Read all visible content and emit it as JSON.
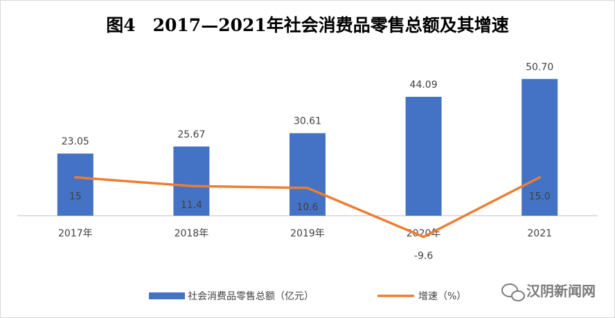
{
  "chart_data": {
    "type": "bar",
    "title": "图4　2017—2021年社会消费品零售总额及其增速",
    "categories": [
      "2017年",
      "2018年",
      "2019年",
      "2020年",
      "2021"
    ],
    "series": [
      {
        "name": "社会消费品零售总额（亿元）",
        "type": "bar",
        "color": "#4472c4",
        "values": [
          23.05,
          25.67,
          30.61,
          44.09,
          50.7
        ],
        "value_labels": [
          "23.05",
          "25.67",
          "30.61",
          "44.09",
          "50.70"
        ]
      },
      {
        "name": "增速（%）",
        "type": "line",
        "color": "#ed7d31",
        "values": [
          15,
          11.4,
          10.6,
          -9.6,
          15.0
        ],
        "value_labels": [
          "15",
          "11.4",
          "10.6",
          "-9.6",
          "15.0"
        ]
      }
    ],
    "grid": false,
    "legend": "bottom"
  },
  "watermark": "汉阴新闻网",
  "watermark_icon": "wechat-icon"
}
